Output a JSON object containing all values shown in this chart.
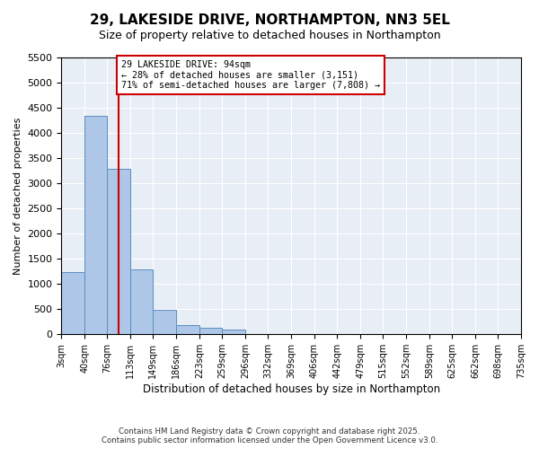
{
  "title": "29, LAKESIDE DRIVE, NORTHAMPTON, NN3 5EL",
  "subtitle": "Size of property relative to detached houses in Northampton",
  "xlabel": "Distribution of detached houses by size in Northampton",
  "ylabel": "Number of detached properties",
  "footer_line1": "Contains HM Land Registry data © Crown copyright and database right 2025.",
  "footer_line2": "Contains public sector information licensed under the Open Government Licence v3.0.",
  "annotation_line1": "29 LAKESIDE DRIVE: 94sqm",
  "annotation_line2": "← 28% of detached houses are smaller (3,151)",
  "annotation_line3": "71% of semi-detached houses are larger (7,808) →",
  "property_size": 94,
  "bar_color": "#aec6e8",
  "bar_edge_color": "#5a8fc0",
  "vline_color": "#cc0000",
  "annotation_box_color": "#cc0000",
  "background_color": "#e8eef5",
  "ylim": [
    0,
    5500
  ],
  "yticks": [
    0,
    500,
    1000,
    1500,
    2000,
    2500,
    3000,
    3500,
    4000,
    4500,
    5000,
    5500
  ],
  "bin_edges": [
    3,
    40,
    76,
    113,
    149,
    186,
    223,
    259,
    296,
    332,
    369,
    406,
    442,
    479,
    515,
    552,
    589,
    625,
    662,
    698,
    735
  ],
  "bin_labels": [
    "3sqm",
    "40sqm",
    "76sqm",
    "113sqm",
    "149sqm",
    "186sqm",
    "223sqm",
    "259sqm",
    "296sqm",
    "332sqm",
    "369sqm",
    "406sqm",
    "442sqm",
    "479sqm",
    "515sqm",
    "552sqm",
    "589sqm",
    "625sqm",
    "662sqm",
    "698sqm",
    "735sqm"
  ],
  "bar_heights": [
    1230,
    4340,
    3280,
    1280,
    490,
    190,
    130,
    100,
    0,
    0,
    0,
    0,
    0,
    0,
    0,
    0,
    0,
    0,
    0,
    0
  ]
}
